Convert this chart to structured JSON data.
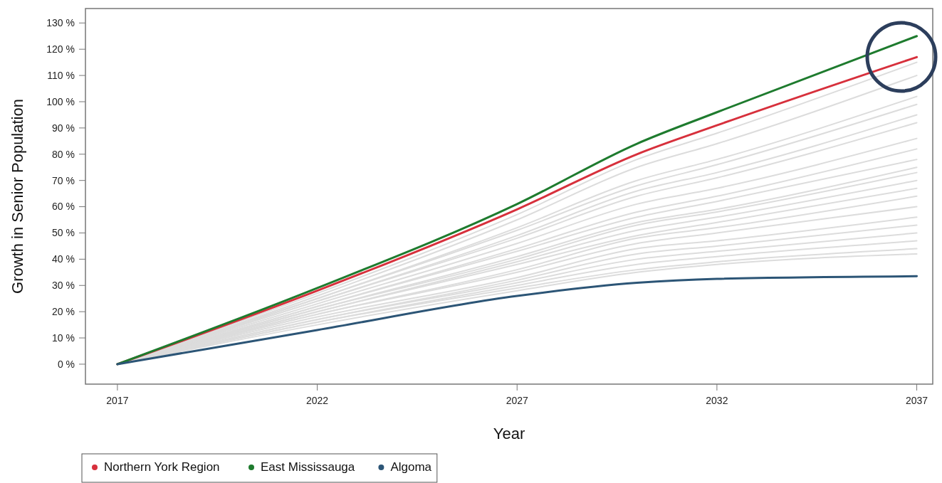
{
  "chart_data": {
    "type": "line",
    "xlabel": "Year",
    "ylabel": "Growth in Senior Population",
    "x": [
      2017,
      2022,
      2027,
      2030,
      2032,
      2037
    ],
    "xlim": [
      2016.2,
      2037.4
    ],
    "xticks": [
      2017,
      2022,
      2027,
      2032,
      2037
    ],
    "ylim": [
      -7.6,
      135.5
    ],
    "yticks": [
      {
        "value": 0,
        "label": "0 %"
      },
      {
        "value": 10,
        "label": "10 %"
      },
      {
        "value": 20,
        "label": "20 %"
      },
      {
        "value": 30,
        "label": "30 %"
      },
      {
        "value": 40,
        "label": "40 %"
      },
      {
        "value": 50,
        "label": "50 %"
      },
      {
        "value": 60,
        "label": "60 %"
      },
      {
        "value": 70,
        "label": "70 %"
      },
      {
        "value": 80,
        "label": "80 %"
      },
      {
        "value": 90,
        "label": "90 %"
      },
      {
        "value": 100,
        "label": "100 %"
      },
      {
        "value": 110,
        "label": "110 %"
      },
      {
        "value": 120,
        "label": "120 %"
      },
      {
        "value": 130,
        "label": "130 %"
      }
    ],
    "grid": false,
    "legend": "bottom left",
    "marker": "none",
    "line_style": "solid",
    "series": [
      {
        "color": "#dcdcdc",
        "values": [
          0,
          27,
          57,
          78,
          88,
          115
        ]
      },
      {
        "color": "#dcdcdc",
        "values": [
          0,
          26,
          55,
          75,
          84,
          110
        ]
      },
      {
        "color": "#dcdcdc",
        "values": [
          0,
          25,
          52,
          70,
          78,
          102
        ]
      },
      {
        "color": "#dcdcdc",
        "values": [
          0,
          25,
          51,
          68,
          76,
          99
        ]
      },
      {
        "color": "#dcdcdc",
        "values": [
          0,
          24,
          49,
          66,
          73,
          95
        ]
      },
      {
        "color": "#dcdcdc",
        "values": [
          0,
          24,
          48,
          64,
          71,
          92
        ]
      },
      {
        "color": "#dcdcdc",
        "values": [
          0,
          23,
          46,
          61,
          67,
          86
        ]
      },
      {
        "color": "#dcdcdc",
        "values": [
          0,
          22,
          44,
          58,
          64,
          82
        ]
      },
      {
        "color": "#dcdcdc",
        "values": [
          0,
          22,
          43,
          56,
          62,
          78
        ]
      },
      {
        "color": "#dcdcdc",
        "values": [
          0,
          21,
          41,
          54,
          59,
          75
        ]
      },
      {
        "color": "#dcdcdc",
        "values": [
          0,
          21,
          40,
          53,
          58,
          73
        ]
      },
      {
        "color": "#dcdcdc",
        "values": [
          0,
          20,
          39,
          51,
          56,
          70
        ]
      },
      {
        "color": "#dcdcdc",
        "values": [
          0,
          20,
          38,
          49,
          54,
          67
        ]
      },
      {
        "color": "#dcdcdc",
        "values": [
          0,
          19,
          36,
          48,
          52,
          64
        ]
      },
      {
        "color": "#dcdcdc",
        "values": [
          0,
          19,
          35,
          46,
          50,
          60
        ]
      },
      {
        "color": "#dcdcdc",
        "values": [
          0,
          18,
          33,
          44,
          47,
          56
        ]
      },
      {
        "color": "#dcdcdc",
        "values": [
          0,
          17,
          32,
          42,
          45,
          53
        ]
      },
      {
        "color": "#dcdcdc",
        "values": [
          0,
          17,
          31,
          40,
          43,
          50
        ]
      },
      {
        "color": "#dcdcdc",
        "values": [
          0,
          16,
          30,
          38,
          41,
          47
        ]
      },
      {
        "color": "#dcdcdc",
        "values": [
          0,
          16,
          29,
          36,
          39,
          44
        ]
      },
      {
        "color": "#dcdcdc",
        "values": [
          0,
          15,
          28,
          35,
          38,
          42
        ]
      },
      {
        "name": "Northern York Region",
        "color": "#d7303c",
        "values": [
          0,
          28,
          59,
          80,
          91,
          117
        ]
      },
      {
        "name": "East Mississauga",
        "color": "#1e7b2e",
        "values": [
          0,
          29,
          61,
          84,
          96,
          125
        ]
      },
      {
        "name": "Algoma",
        "color": "#2c5576",
        "values": [
          0,
          13,
          26,
          31,
          32.5,
          33.5
        ]
      }
    ]
  }
}
